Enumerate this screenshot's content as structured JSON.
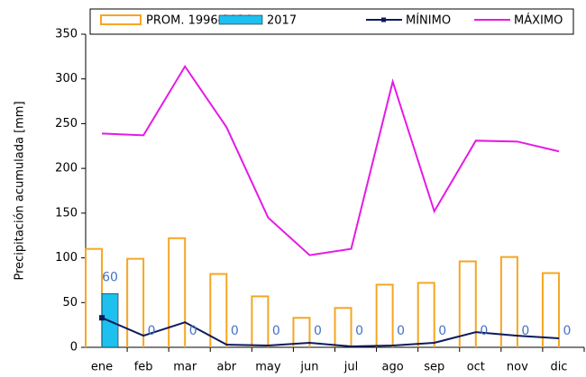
{
  "chart_data": {
    "type": "bar",
    "ylabel": "Precipitación acumulada [mm]",
    "categories": [
      "ene",
      "feb",
      "mar",
      "abr",
      "may",
      "jun",
      "jul",
      "ago",
      "sep",
      "oct",
      "nov",
      "dic"
    ],
    "series": [
      {
        "name": "PROM. 1996-2014",
        "type": "bar",
        "color": "#f5a623",
        "values": [
          110,
          99,
          122,
          82,
          57,
          33,
          44,
          70,
          72,
          96,
          101,
          83
        ]
      },
      {
        "name": "2017",
        "type": "bar",
        "color": "#1ec0ef",
        "values": [
          60,
          0,
          0,
          0,
          0,
          0,
          0,
          0,
          0,
          0,
          0,
          0
        ]
      },
      {
        "name": "MÍNIMO",
        "type": "line",
        "color": "#0d1a5c",
        "values": [
          33,
          13,
          28,
          3,
          2,
          5,
          1,
          2,
          5,
          17,
          13,
          10
        ]
      },
      {
        "name": "MÁXIMO",
        "type": "line",
        "color": "#e619e6",
        "values": [
          239,
          237,
          314,
          246,
          145,
          103,
          110,
          297,
          152,
          231,
          230,
          219
        ]
      }
    ],
    "ylim": [
      0,
      350
    ],
    "yticks": [
      0,
      50,
      100,
      150,
      200,
      250,
      300,
      350
    ],
    "grid": false
  }
}
